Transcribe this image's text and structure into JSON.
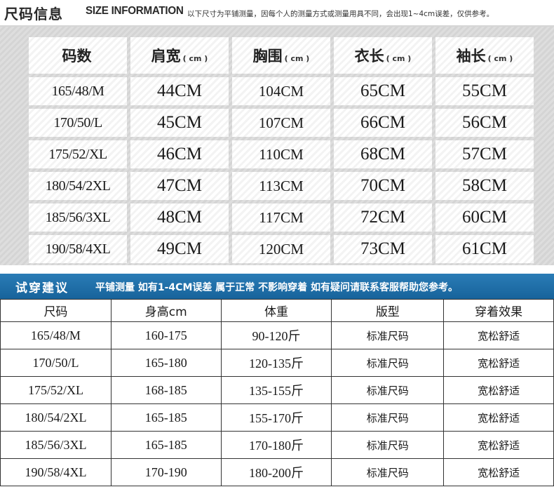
{
  "header": {
    "title_cn": "尺码信息",
    "title_en": "SIZE INFORMATION",
    "note": "以下尺寸为平铺测量，因每个人的测量方式或测量用具不同，会出现1~4cm误差，仅供参考。"
  },
  "size_table": {
    "columns": [
      {
        "label": "码数",
        "unit": ""
      },
      {
        "label": "肩宽",
        "unit": "( cm )"
      },
      {
        "label": "胸围",
        "unit": "( cm )"
      },
      {
        "label": "衣长",
        "unit": "( cm )"
      },
      {
        "label": "袖长",
        "unit": "( cm )"
      }
    ],
    "rows": [
      [
        "165/48/M",
        "44CM",
        "104CM",
        "65CM",
        "55CM"
      ],
      [
        "170/50/L",
        "45CM",
        "107CM",
        "66CM",
        "56CM"
      ],
      [
        "175/52/XL",
        "46CM",
        "110CM",
        "68CM",
        "57CM"
      ],
      [
        "180/54/2XL",
        "47CM",
        "113CM",
        "70CM",
        "58CM"
      ],
      [
        "185/56/3XL",
        "48CM",
        "117CM",
        "72CM",
        "60CM"
      ],
      [
        "190/58/4XL",
        "49CM",
        "120CM",
        "73CM",
        "61CM"
      ]
    ]
  },
  "banner": {
    "title": "试穿建议",
    "note": "平铺测量 如有1-4CM误差 属于正常 不影响穿着 如有疑问请联系客服帮助您参考。"
  },
  "fit_table": {
    "columns": [
      "尺码",
      "身高cm",
      "体重",
      "版型",
      "穿着效果"
    ],
    "rows": [
      [
        "165/48/M",
        "160-175",
        "90-120斤",
        "标准尺码",
        "宽松舒适"
      ],
      [
        "170/50/L",
        "165-180",
        "120-135斤",
        "标准尺码",
        "宽松舒适"
      ],
      [
        "175/52/XL",
        "168-185",
        "135-155斤",
        "标准尺码",
        "宽松舒适"
      ],
      [
        "180/54/2XL",
        "165-185",
        "155-170斤",
        "标准尺码",
        "宽松舒适"
      ],
      [
        "185/56/3XL",
        "165-185",
        "170-180斤",
        "标准尺码",
        "宽松舒适"
      ],
      [
        "190/58/4XL",
        "170-190",
        "180-200斤",
        "标准尺码",
        "宽松舒适"
      ]
    ]
  },
  "colors": {
    "banner_bg": "#1f6fa8",
    "panel_bg": "#d9d9d9"
  }
}
